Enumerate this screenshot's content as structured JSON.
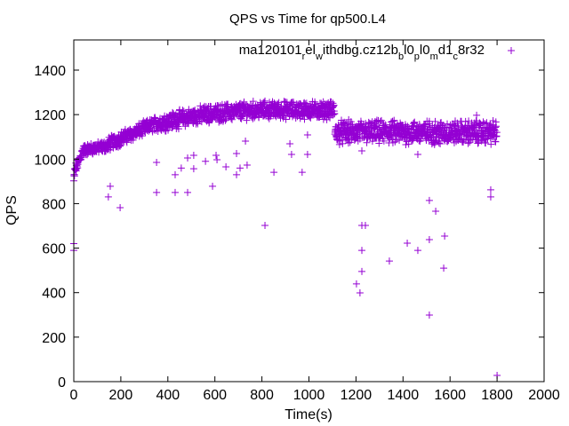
{
  "chart_data": {
    "type": "scatter",
    "title": "QPS vs Time for qp500.L4",
    "xlabel": "Time(s)",
    "ylabel": "QPS",
    "xlim": [
      0,
      2000
    ],
    "ylim": [
      0,
      1500
    ],
    "xticks": [
      0,
      200,
      400,
      600,
      800,
      1000,
      1200,
      1400,
      1600,
      1800,
      2000
    ],
    "yticks": [
      0,
      200,
      400,
      600,
      800,
      1000,
      1200,
      1400
    ],
    "grid": false,
    "marker": "plus",
    "legend_position": "top-right",
    "series": [
      {
        "name": "ma120101_rel_withdbg.cz12b_bl0_pl0_md1_c8r32",
        "legend_parts": [
          {
            "t": "ma120101",
            "sub": false
          },
          {
            "t": "r",
            "sub": true
          },
          {
            "t": "el",
            "sub": false
          },
          {
            "t": "w",
            "sub": true
          },
          {
            "t": "ithdbg.cz12b",
            "sub": false
          },
          {
            "t": "b",
            "sub": true
          },
          {
            "t": "l0",
            "sub": false
          },
          {
            "t": "p",
            "sub": true
          },
          {
            "t": "l0",
            "sub": false
          },
          {
            "t": "m",
            "sub": true
          },
          {
            "t": "d1",
            "sub": false
          },
          {
            "t": "c",
            "sub": true
          },
          {
            "t": "8r32",
            "sub": false
          }
        ],
        "color": "#9400d3",
        "sample_interval_s": 1,
        "main_band": [
          {
            "x_start": 0,
            "x_end": 5,
            "qps_start": 900,
            "qps_end": 950,
            "spread": 40
          },
          {
            "x_start": 5,
            "x_end": 40,
            "qps_start": 950,
            "qps_end": 1040,
            "spread": 40
          },
          {
            "x_start": 40,
            "x_end": 150,
            "qps_start": 1040,
            "qps_end": 1060,
            "spread": 40
          },
          {
            "x_start": 150,
            "x_end": 350,
            "qps_start": 1070,
            "qps_end": 1160,
            "spread": 50
          },
          {
            "x_start": 350,
            "x_end": 550,
            "qps_start": 1160,
            "qps_end": 1200,
            "spread": 60
          },
          {
            "x_start": 550,
            "x_end": 750,
            "qps_start": 1200,
            "qps_end": 1220,
            "spread": 60
          },
          {
            "x_start": 750,
            "x_end": 1110,
            "qps_start": 1220,
            "qps_end": 1220,
            "spread": 60
          },
          {
            "x_start": 1110,
            "x_end": 1800,
            "qps_start": 1120,
            "qps_end": 1120,
            "spread": 80
          }
        ],
        "outliers": [
          [
            0,
            620
          ],
          [
            0,
            590
          ],
          [
            147,
            830
          ],
          [
            155,
            878
          ],
          [
            197,
            782
          ],
          [
            352,
            985
          ],
          [
            352,
            850
          ],
          [
            431,
            930
          ],
          [
            431,
            850
          ],
          [
            457,
            960
          ],
          [
            484,
            850
          ],
          [
            484,
            1005
          ],
          [
            510,
            957
          ],
          [
            510,
            1017
          ],
          [
            560,
            990
          ],
          [
            590,
            878
          ],
          [
            605,
            1017
          ],
          [
            609,
            997
          ],
          [
            647,
            965
          ],
          [
            692,
            1025
          ],
          [
            692,
            930
          ],
          [
            707,
            960
          ],
          [
            711,
            1197
          ],
          [
            730,
            1081
          ],
          [
            737,
            973
          ],
          [
            813,
            702
          ],
          [
            851,
            941
          ],
          [
            919,
            1069
          ],
          [
            926,
            1021
          ],
          [
            971,
            941
          ],
          [
            994,
            1021
          ],
          [
            994,
            1109
          ],
          [
            1202,
            439
          ],
          [
            1217,
            399
          ],
          [
            1225,
            495
          ],
          [
            1225,
            590
          ],
          [
            1225,
            702
          ],
          [
            1240,
            702
          ],
          [
            1225,
            1037
          ],
          [
            1342,
            542
          ],
          [
            1418,
            622
          ],
          [
            1463,
            590
          ],
          [
            1463,
            1021
          ],
          [
            1512,
            814
          ],
          [
            1512,
            299
          ],
          [
            1512,
            638
          ],
          [
            1539,
            766
          ],
          [
            1577,
            654
          ],
          [
            1573,
            510
          ],
          [
            1558,
            1069
          ],
          [
            1773,
            862
          ],
          [
            1773,
            830
          ],
          [
            1800,
            28
          ],
          [
            1713,
            1197
          ]
        ]
      }
    ]
  }
}
